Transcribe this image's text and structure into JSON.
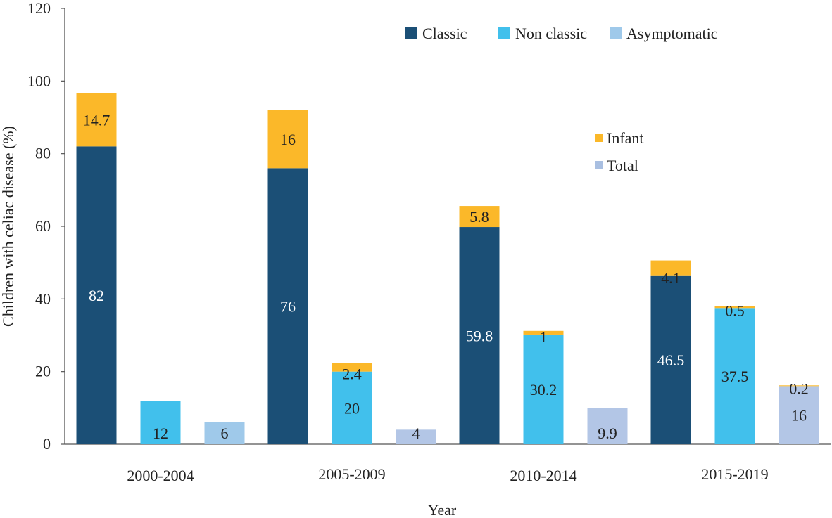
{
  "chart_data": {
    "type": "bar",
    "stacked": true,
    "title": "",
    "xlabel": "Year",
    "ylabel": "Children with celiac disease (%)",
    "ylim": [
      0,
      120
    ],
    "yticks": [
      0,
      20,
      40,
      60,
      80,
      100,
      120
    ],
    "categories": [
      "2000-2004",
      "2005-2009",
      "2010-2014",
      "2015-2019"
    ],
    "groups": [
      "Classic",
      "Non classic",
      "Asymptomatic"
    ],
    "stack_segments": [
      "Total",
      "Infant"
    ],
    "values": [
      {
        "category": "2000-2004",
        "bars": [
          {
            "group": "Classic",
            "base": 82,
            "base_label": "82",
            "infant": 14.7,
            "infant_label": "14.7"
          },
          {
            "group": "Non classic",
            "base": 12,
            "base_label": "12",
            "infant": null,
            "infant_label": null
          },
          {
            "group": "Asymptomatic",
            "base": 6,
            "base_label": "6",
            "infant": null,
            "infant_label": null
          }
        ]
      },
      {
        "category": "2005-2009",
        "bars": [
          {
            "group": "Classic",
            "base": 76,
            "base_label": "76",
            "infant": 16,
            "infant_label": "16"
          },
          {
            "group": "Non classic",
            "base": 20,
            "base_label": "20",
            "infant": 2.4,
            "infant_label": "2.4"
          },
          {
            "group": "Asymptomatic",
            "base": 4,
            "base_label": "4",
            "infant": null,
            "infant_label": null
          }
        ]
      },
      {
        "category": "2010-2014",
        "bars": [
          {
            "group": "Classic",
            "base": 59.8,
            "base_label": "59.8",
            "infant": 5.8,
            "infant_label": "5.8"
          },
          {
            "group": "Non classic",
            "base": 30.2,
            "base_label": "30.2",
            "infant": 1,
            "infant_label": "1"
          },
          {
            "group": "Asymptomatic",
            "base": 9.9,
            "base_label": "9.9",
            "infant": null,
            "infant_label": null
          }
        ]
      },
      {
        "category": "2015-2019",
        "bars": [
          {
            "group": "Classic",
            "base": 46.5,
            "base_label": "46.5",
            "infant": 4.1,
            "infant_label": "4.1"
          },
          {
            "group": "Non classic",
            "base": 37.5,
            "base_label": "37.5",
            "infant": 0.5,
            "infant_label": "0.5"
          },
          {
            "group": "Asymptomatic",
            "base": 16,
            "base_label": "16",
            "infant": 0.2,
            "infant_label": "0.2"
          }
        ]
      }
    ],
    "legend_groups": [
      {
        "label": "Classic",
        "color": "#1b4f76"
      },
      {
        "label": "Non classic",
        "color": "#41c0ec"
      },
      {
        "label": "Asymptomatic",
        "color": "#9fc9ea"
      }
    ],
    "legend_segments": [
      {
        "label": "Infant",
        "color": "#fbb829"
      },
      {
        "label": "Total",
        "color": "#a9bfe1"
      }
    ],
    "colors": {
      "Classic": "#1b4f76",
      "Non classic": "#41c0ec",
      "Asymptomatic": "#9fc9ea",
      "Asymptomatic_late": "#b3c6e6",
      "Infant": "#fbb829"
    },
    "label_colors": {
      "Classic": "#ffffff",
      "Non classic": "#222222",
      "Asymptomatic": "#222222",
      "Infant": "#222222"
    }
  }
}
